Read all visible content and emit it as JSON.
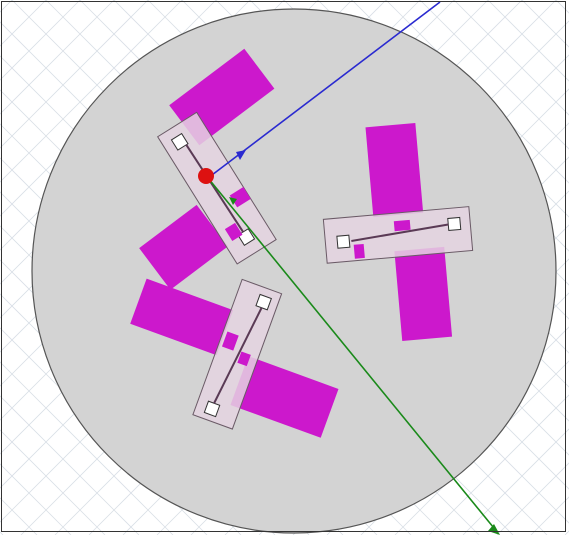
{
  "scene": {
    "background": "#ffffff",
    "grid_color": "#d9dfe6",
    "substrate_fill": "#d3d3d3",
    "substrate_stroke": "#555555",
    "board_fill": "#e4d4e1",
    "board_stroke": "#6a5a66",
    "patch_color": "#cc18cc",
    "axis_x_color": "#2a2ad0",
    "axis_y_color": "#1a8a1a",
    "origin_color": "#dd1111"
  },
  "model": {
    "elements": [
      {
        "name": "substrate-disc"
      },
      {
        "name": "dipole-element-1"
      },
      {
        "name": "dipole-element-2"
      },
      {
        "name": "dipole-element-3"
      }
    ]
  }
}
